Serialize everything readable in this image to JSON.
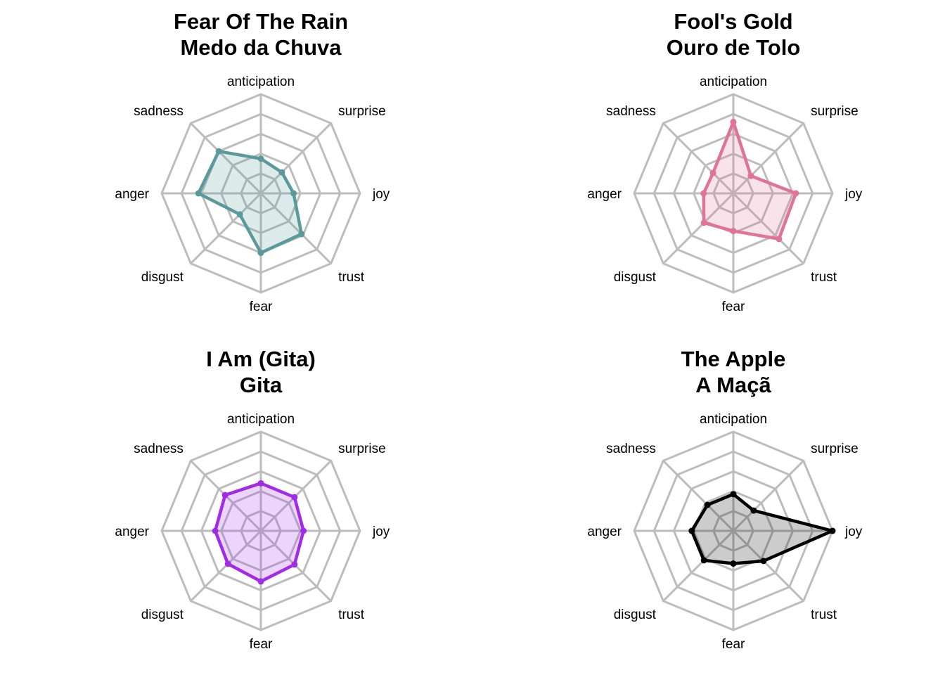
{
  "chart_data": [
    {
      "type": "radar",
      "title_line1": "Fear Of The Rain",
      "title_line2": "Medo da Chuva",
      "axes": [
        "anticipation",
        "surprise",
        "joy",
        "trust",
        "fear",
        "disgust",
        "anger",
        "sadness"
      ],
      "rlim": [
        0,
        1
      ],
      "rings": 5,
      "grid": true,
      "color": "#5a9a9b",
      "values": [
        0.35,
        0.3,
        0.33,
        0.58,
        0.6,
        0.3,
        0.63,
        0.6
      ]
    },
    {
      "type": "radar",
      "title_line1": "Fool's Gold",
      "title_line2": "Ouro de Tolo",
      "axes": [
        "anticipation",
        "surprise",
        "joy",
        "trust",
        "fear",
        "disgust",
        "anger",
        "sadness"
      ],
      "rlim": [
        0,
        1
      ],
      "rings": 5,
      "grid": true,
      "color": "#df7398",
      "values": [
        0.72,
        0.25,
        0.63,
        0.65,
        0.38,
        0.42,
        0.3,
        0.29
      ]
    },
    {
      "type": "radar",
      "title_line1": "I Am (Gita)",
      "title_line2": "Gita",
      "axes": [
        "anticipation",
        "surprise",
        "joy",
        "trust",
        "fear",
        "disgust",
        "anger",
        "sadness"
      ],
      "rlim": [
        0,
        1
      ],
      "rings": 5,
      "grid": true,
      "color": "#a02ce8",
      "values": [
        0.48,
        0.48,
        0.43,
        0.48,
        0.51,
        0.47,
        0.46,
        0.51
      ]
    },
    {
      "type": "radar",
      "title_line1": "The Apple",
      "title_line2": "A Maçã",
      "axes": [
        "anticipation",
        "surprise",
        "joy",
        "trust",
        "fear",
        "disgust",
        "anger",
        "sadness"
      ],
      "rlim": [
        0,
        1
      ],
      "rings": 5,
      "grid": true,
      "color": "#000000",
      "values": [
        0.37,
        0.29,
        1.0,
        0.43,
        0.33,
        0.42,
        0.42,
        0.37
      ]
    }
  ]
}
